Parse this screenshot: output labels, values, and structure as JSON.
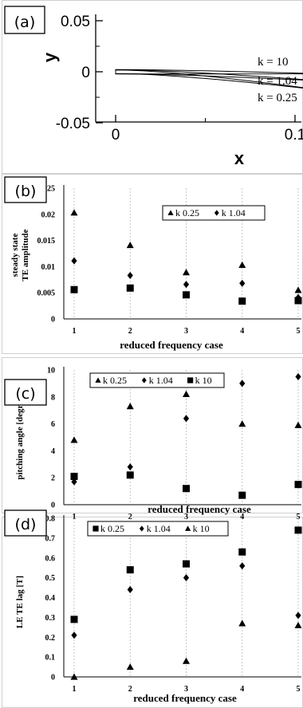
{
  "chart_data": [
    {
      "panel": "(a)",
      "type": "line",
      "xlabel": "x",
      "ylabel": "y",
      "xlim": [
        -0.025,
        0.135
      ],
      "ylim": [
        -0.05,
        0.055
      ],
      "xticks": [
        "0",
        "0.1"
      ],
      "yticks": [
        "0.05",
        "0",
        "-0.05"
      ],
      "series": [
        {
          "name": "k = 10",
          "x": [
            0,
            0.115
          ],
          "y": [
            0,
            -0.002
          ]
        },
        {
          "name": "k = 1.04",
          "x": [
            0,
            0.115
          ],
          "y": [
            0,
            -0.009
          ]
        },
        {
          "name": "k = 0.25",
          "x": [
            0,
            0.115
          ],
          "y": [
            0,
            -0.018
          ]
        }
      ],
      "legend_placement": "right",
      "grid": false
    },
    {
      "panel": "(b)",
      "type": "scatter",
      "xlabel": "reduced frequency case",
      "ylabel": "steady state  TE amplitude",
      "xlim": [
        0.9,
        5.1
      ],
      "ylim": [
        0,
        0.025
      ],
      "xticks": [
        "1",
        "2",
        "3",
        "4",
        "5"
      ],
      "yticks": [
        "0",
        "0.005",
        "0.01",
        "0.015",
        "0.02",
        "0.025"
      ],
      "series": [
        {
          "name": "k 0.25",
          "marker": "triangle",
          "x": [
            1,
            2,
            3,
            4,
            5
          ],
          "y": [
            0.0203,
            0.0141,
            0.0089,
            0.0103,
            0.0055
          ]
        },
        {
          "name": "k 1.04",
          "marker": "diamond",
          "x": [
            1,
            2,
            3,
            4,
            5
          ],
          "y": [
            0.0111,
            0.0083,
            0.0066,
            0.0068,
            0.0041
          ]
        },
        {
          "name": "",
          "marker": "square",
          "x": [
            1,
            2,
            3,
            4,
            5
          ],
          "y": [
            0.0056,
            0.0059,
            0.0046,
            0.0034,
            0.0035
          ]
        }
      ],
      "legend_placement": "top-center",
      "grid": false
    },
    {
      "panel": "(c)",
      "type": "scatter",
      "xlabel": "reduced frequency case",
      "ylabel": "pitching angle [degree]",
      "xlim": [
        0.9,
        5.1
      ],
      "ylim": [
        0,
        10
      ],
      "xticks": [
        "1",
        "2",
        "3",
        "4",
        "5"
      ],
      "yticks": [
        "0",
        "2",
        "4",
        "6",
        "8",
        "10"
      ],
      "series": [
        {
          "name": "k 0.25",
          "marker": "triangle",
          "x": [
            1,
            2,
            3,
            4,
            5
          ],
          "y": [
            4.8,
            7.3,
            8.2,
            6.0,
            5.9
          ]
        },
        {
          "name": "k 1.04",
          "marker": "diamond",
          "x": [
            1,
            2,
            3,
            4,
            5
          ],
          "y": [
            1.7,
            2.8,
            6.4,
            9.0,
            9.5
          ]
        },
        {
          "name": "k 10",
          "marker": "square",
          "x": [
            1,
            2,
            3,
            4,
            5
          ],
          "y": [
            2.1,
            2.2,
            1.2,
            0.7,
            1.5
          ]
        }
      ],
      "legend_placement": "top-left",
      "grid": false
    },
    {
      "panel": "(d)",
      "type": "scatter",
      "xlabel": "reduced frequency case",
      "ylabel": "LE TE lag [T]",
      "xlim": [
        0.9,
        5.1
      ],
      "ylim": [
        0,
        0.8
      ],
      "xticks": [
        "1",
        "2",
        "3",
        "4",
        "5"
      ],
      "yticks": [
        "0",
        "0.1",
        "0.2",
        "0.3",
        "0.4",
        "0.5",
        "0.6",
        "0.7",
        "0.8"
      ],
      "series": [
        {
          "name": "k 0.25",
          "marker": "square",
          "x": [
            1,
            2,
            3,
            4,
            5
          ],
          "y": [
            0.29,
            0.54,
            0.57,
            0.63,
            0.74
          ]
        },
        {
          "name": "k 1.04",
          "marker": "diamond",
          "x": [
            1,
            2,
            3,
            4,
            5
          ],
          "y": [
            0.21,
            0.44,
            0.5,
            0.56,
            0.31
          ]
        },
        {
          "name": "k 10",
          "marker": "triangle",
          "x": [
            1,
            2,
            3,
            4,
            5
          ],
          "y": [
            0.0,
            0.05,
            0.08,
            0.27,
            0.26
          ]
        }
      ],
      "legend_placement": "top-center",
      "grid": false
    }
  ]
}
